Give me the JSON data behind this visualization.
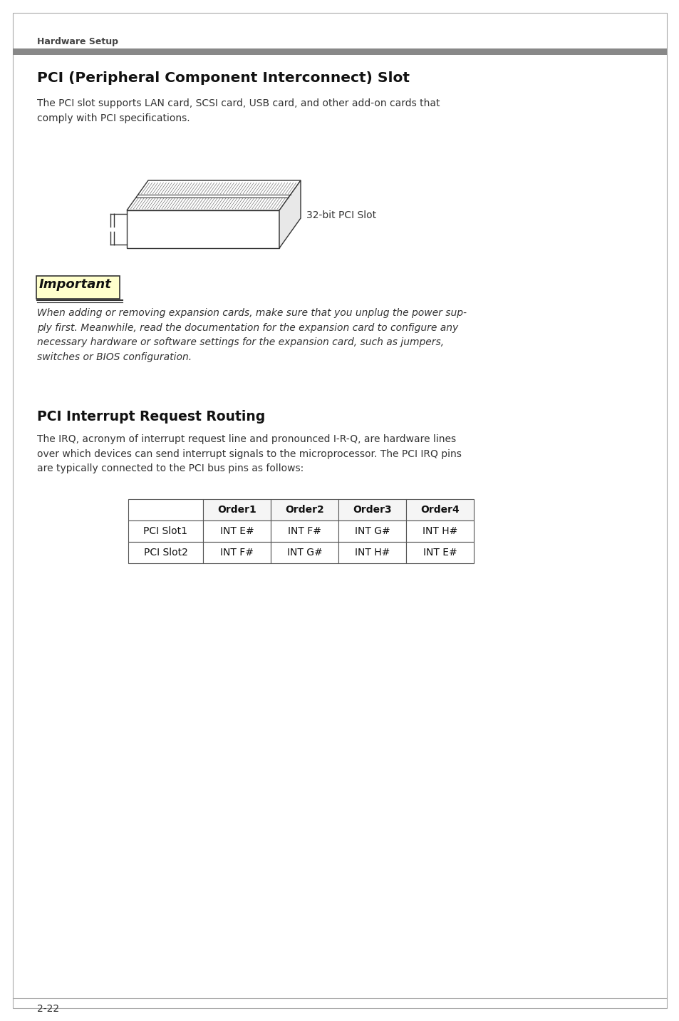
{
  "page_header": "Hardware Setup",
  "header_bar_color": "#888888",
  "section1_title": "PCI (Peripheral Component Interconnect) Slot",
  "section1_body": "The PCI slot supports LAN card, SCSI card, USB card, and other add-on cards that\ncomply with PCI specifications.",
  "pci_slot_label": "32-bit PCI Slot",
  "important_label": "Important",
  "important_body": "When adding or removing expansion cards, make sure that you unplug the power sup-\nply first. Meanwhile, read the documentation for the expansion card to configure any\nnecessary hardware or software settings for the expansion card, such as jumpers,\nswitches or BIOS configuration.",
  "section2_title": "PCI Interrupt Request Routing",
  "section2_body": "The IRQ, acronym of interrupt request line and pronounced I-R-Q, are hardware lines\nover which devices can send interrupt signals to the microprocessor. The PCI IRQ pins\nare typically connected to the PCI bus pins as follows:",
  "table_headers": [
    "",
    "Order1",
    "Order2",
    "Order3",
    "Order4"
  ],
  "table_rows": [
    [
      "PCI Slot1",
      "INT E#",
      "INT F#",
      "INT G#",
      "INT H#"
    ],
    [
      "PCI Slot2",
      "INT F#",
      "INT G#",
      "INT H#",
      "INT E#"
    ]
  ],
  "page_number": "2-22",
  "bg_color": "#ffffff",
  "text_color": "#333333",
  "header_text_color": "#444444",
  "border_color": "#aaaaaa",
  "table_border_color": "#555555"
}
